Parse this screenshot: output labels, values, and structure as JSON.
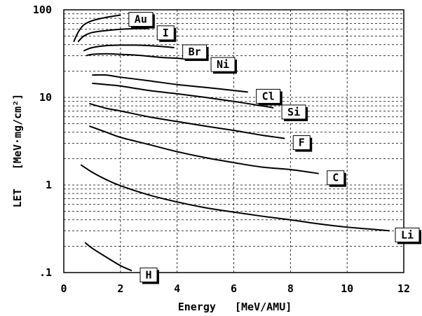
{
  "chart_data": {
    "type": "line",
    "xlabel": "Energy   [MeV/AMU]",
    "ylabel": "LET   [MeV·mg/cm²]",
    "xlim": [
      0,
      12
    ],
    "ylim": [
      0.1,
      100
    ],
    "yscale": "log",
    "grid": true,
    "x_ticks": [
      0,
      2,
      4,
      6,
      8,
      10,
      12
    ],
    "x_tick_labels": [
      "0",
      "2",
      "4",
      "6",
      "8",
      "10",
      "12"
    ],
    "y_ticks": [
      0.1,
      1,
      10,
      100
    ],
    "y_tick_labels": [
      ".1",
      "1",
      "10",
      "100"
    ],
    "series": [
      {
        "name": "Au",
        "x": [
          0.35,
          0.5,
          0.7,
          1.0,
          1.5,
          2.0
        ],
        "y": [
          43,
          55,
          67,
          75,
          82,
          87
        ]
      },
      {
        "name": "I",
        "x": [
          0.5,
          0.7,
          1.0,
          1.5,
          2.0,
          2.5,
          3.0
        ],
        "y": [
          43,
          50,
          55,
          58,
          60,
          61,
          61
        ]
      },
      {
        "name": "Br",
        "x": [
          0.7,
          1.0,
          1.5,
          2.0,
          2.5,
          3.0,
          3.5,
          3.9
        ],
        "y": [
          34,
          37,
          39,
          39.5,
          39.5,
          39,
          38,
          37
        ]
      },
      {
        "name": "Ni",
        "x": [
          0.8,
          1.0,
          1.5,
          2.0,
          2.5,
          3.0,
          3.5,
          4.0,
          4.5,
          4.9
        ],
        "y": [
          30,
          31,
          31.5,
          31,
          30.5,
          29.5,
          28.5,
          28,
          27,
          26.5
        ]
      },
      {
        "name": "Cl",
        "x": [
          1.0,
          1.5,
          2.0,
          3.0,
          4.0,
          5.0,
          6.0,
          6.5
        ],
        "y": [
          18,
          18,
          17,
          15.5,
          14,
          13,
          12,
          11.5
        ]
      },
      {
        "name": "Si",
        "x": [
          1.0,
          1.5,
          2.0,
          3.0,
          4.0,
          5.0,
          6.0,
          7.0,
          7.4
        ],
        "y": [
          14.5,
          14,
          13.5,
          12,
          11,
          10,
          9,
          8,
          7.6
        ]
      },
      {
        "name": "F",
        "x": [
          0.9,
          1.5,
          2.0,
          3.0,
          4.0,
          5.0,
          6.0,
          7.0,
          7.8
        ],
        "y": [
          8.5,
          7.5,
          7,
          6,
          5.3,
          4.7,
          4.2,
          3.7,
          3.4
        ]
      },
      {
        "name": "C",
        "x": [
          0.9,
          1.5,
          2.0,
          3.0,
          4.0,
          5.0,
          6.0,
          7.0,
          8.0,
          9.0
        ],
        "y": [
          4.7,
          4,
          3.5,
          2.9,
          2.4,
          2.05,
          1.8,
          1.6,
          1.5,
          1.35
        ]
      },
      {
        "name": "Li",
        "x": [
          0.6,
          1.0,
          1.5,
          2.0,
          3.0,
          4.0,
          5.0,
          6.0,
          7.0,
          8.0,
          9.0,
          10.0,
          11.0,
          11.5
        ],
        "y": [
          1.7,
          1.4,
          1.15,
          0.98,
          0.77,
          0.64,
          0.55,
          0.49,
          0.44,
          0.4,
          0.36,
          0.33,
          0.31,
          0.3
        ]
      },
      {
        "name": "H",
        "x": [
          0.75,
          1.0,
          1.5,
          2.0,
          2.4
        ],
        "y": [
          0.22,
          0.19,
          0.15,
          0.12,
          0.105
        ]
      }
    ]
  }
}
